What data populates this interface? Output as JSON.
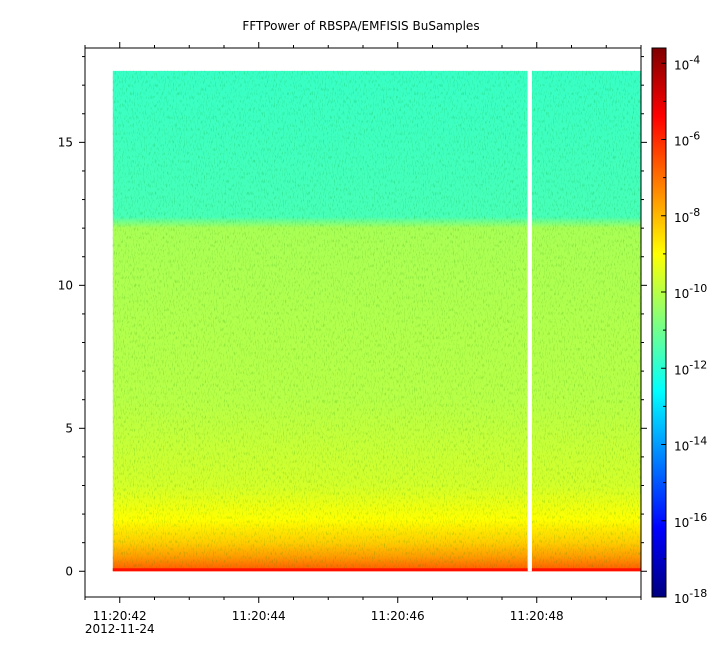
{
  "chart_data": {
    "type": "heatmap",
    "title": "FFTPower of RBSPA/EMFISIS  BuSamples",
    "xlabel": "",
    "ylabel": "",
    "x_ticks": [
      "11:20:42",
      "11:20:44",
      "11:20:46",
      "11:20:48"
    ],
    "x_tick_seconds": [
      42,
      44,
      46,
      48
    ],
    "x_date_label": "2012-11-24",
    "x_range_seconds": [
      41.5,
      49.5
    ],
    "y_ticks": [
      "0",
      "5",
      "10",
      "15"
    ],
    "y_tick_values": [
      0,
      5,
      10,
      15
    ],
    "y_range": [
      -0.9,
      18.3
    ],
    "data_extent": {
      "x_start_seconds": 41.9,
      "x_end_seconds": 49.5,
      "y_min": 0,
      "y_max": 17.5
    },
    "data_gap_seconds": [
      47.87,
      47.93
    ],
    "colorbar": {
      "scale": "log",
      "range_exponents": [
        -18,
        -3.6
      ],
      "tick_exponents": [
        -4,
        -6,
        -8,
        -10,
        -12,
        -14,
        -16,
        -18
      ],
      "tick_base": "10",
      "colormap": [
        "#00007f",
        "#0000ff",
        "#007fff",
        "#00ffff",
        "#7fff7f",
        "#ffff00",
        "#ff7f00",
        "#ff0000",
        "#7f0000"
      ]
    },
    "power_profile": [
      {
        "y": 0.0,
        "log_power": -6.6
      },
      {
        "y": 0.5,
        "log_power": -7.6
      },
      {
        "y": 1.0,
        "log_power": -8.3
      },
      {
        "y": 1.8,
        "log_power": -9.0
      },
      {
        "y": 3.0,
        "log_power": -9.6
      },
      {
        "y": 6.0,
        "log_power": -10.0
      },
      {
        "y": 12.0,
        "log_power": -10.2
      },
      {
        "y": 12.4,
        "log_power": -11.6
      },
      {
        "y": 17.5,
        "log_power": -11.8
      }
    ]
  }
}
